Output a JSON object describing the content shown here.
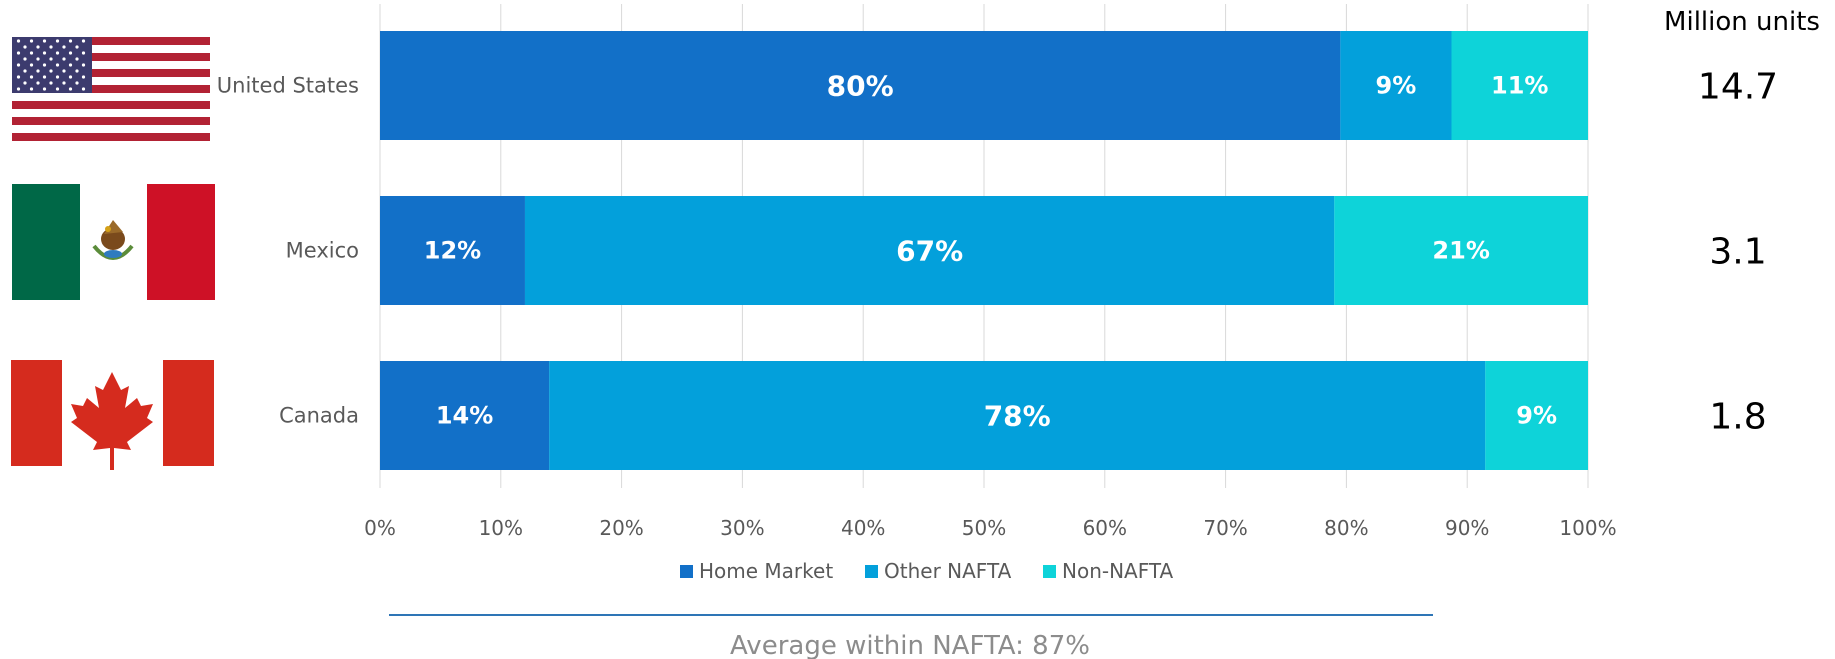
{
  "chart_data": {
    "type": "bar",
    "orientation": "horizontal",
    "stacked": true,
    "categories": [
      "United States",
      "Mexico",
      "Canada"
    ],
    "series": [
      {
        "name": "Home Market",
        "color": "#1270c8",
        "values": [
          79.5,
          12,
          14
        ],
        "labels": [
          "80%",
          "12%",
          "14%"
        ]
      },
      {
        "name": "Other NAFTA",
        "color": "#03a0db",
        "values": [
          9.2,
          67,
          77.5
        ],
        "labels": [
          "9%",
          "67%",
          "78%"
        ]
      },
      {
        "name": "Non-NAFTA",
        "color": "#0ed3d9",
        "values": [
          11.3,
          21,
          8.5
        ],
        "labels": [
          "11%",
          "21%",
          "9%"
        ]
      }
    ],
    "xlim": [
      0,
      100
    ],
    "x_ticks": [
      "0%",
      "10%",
      "20%",
      "30%",
      "40%",
      "50%",
      "60%",
      "70%",
      "80%",
      "90%",
      "100%"
    ],
    "grid": true,
    "legend_position": "bottom"
  },
  "units": {
    "header": "Million units",
    "values": [
      "14.7",
      "3.1",
      "1.8"
    ]
  },
  "footnote": "Average within NAFTA: 87%",
  "colors": {
    "gridline": "#d9d9d9",
    "footnote_line": "#2e75b6"
  },
  "icons": [
    "flag-usa-icon",
    "flag-mexico-icon",
    "flag-canada-icon"
  ]
}
